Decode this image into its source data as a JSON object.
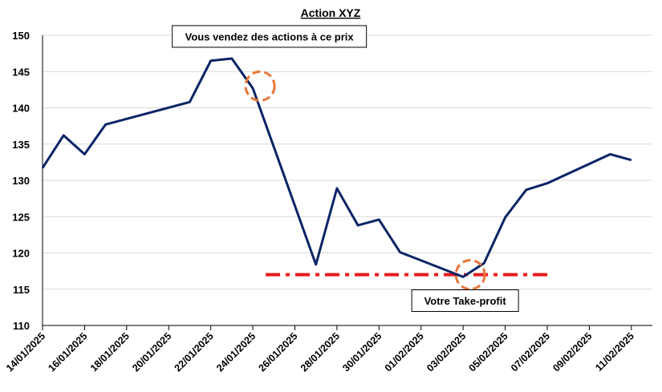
{
  "chart_data": {
    "type": "line",
    "title": "Action XYZ",
    "xlabel": "",
    "ylabel": "",
    "ylim": [
      110,
      150
    ],
    "yticks": [
      110,
      115,
      120,
      125,
      130,
      135,
      140,
      145,
      150
    ],
    "xlim": [
      "14/01/2025",
      "12/02/2025"
    ],
    "xtick_labels": [
      "14/01/2025",
      "16/01/2025",
      "18/01/2025",
      "20/01/2025",
      "22/01/2025",
      "24/01/2025",
      "26/01/2025",
      "28/01/2025",
      "30/01/2025",
      "01/02/2025",
      "03/02/2025",
      "05/02/2025",
      "07/02/2025",
      "09/02/2025",
      "11/02/2025"
    ],
    "grid": "horizontal",
    "legend": "none",
    "series": [
      {
        "color": "#0b2466",
        "points": [
          {
            "x": "14/01/2025",
            "y": 131.7
          },
          {
            "x": "15/01/2025",
            "y": 136.2
          },
          {
            "x": "16/01/2025",
            "y": 133.6
          },
          {
            "x": "17/01/2025",
            "y": 137.7
          },
          {
            "x": "21/01/2025",
            "y": 140.8
          },
          {
            "x": "22/01/2025",
            "y": 146.5
          },
          {
            "x": "23/01/2025",
            "y": 146.8
          },
          {
            "x": "24/01/2025",
            "y": 142.7
          },
          {
            "x": "27/01/2025",
            "y": 118.4
          },
          {
            "x": "28/01/2025",
            "y": 128.9
          },
          {
            "x": "29/01/2025",
            "y": 123.8
          },
          {
            "x": "30/01/2025",
            "y": 124.6
          },
          {
            "x": "31/01/2025",
            "y": 120.1
          },
          {
            "x": "03/02/2025",
            "y": 116.7
          },
          {
            "x": "04/02/2025",
            "y": 118.6
          },
          {
            "x": "05/02/2025",
            "y": 124.9
          },
          {
            "x": "06/02/2025",
            "y": 128.7
          },
          {
            "x": "07/02/2025",
            "y": 129.6
          },
          {
            "x": "10/02/2025",
            "y": 133.6
          },
          {
            "x": "11/02/2025",
            "y": 132.8
          }
        ]
      }
    ],
    "reference_line": {
      "y": 117,
      "x_start": "24/01/2025",
      "x_end": "07/02/2025",
      "color": "#e8191b",
      "style": "dash-dot"
    },
    "highlight_circles": [
      {
        "x": "24/01/2025",
        "y": 143,
        "color": "#e8763a"
      },
      {
        "x": "03/02/2025",
        "y": 117,
        "color": "#e8763a"
      }
    ],
    "annotations": [
      {
        "text": "Vous vendez des actions à ce prix",
        "x": "22/01/2025",
        "y": 146.8
      },
      {
        "text": "Votre Take-profit",
        "x": "03/02/2025",
        "y": 113.7
      }
    ]
  }
}
